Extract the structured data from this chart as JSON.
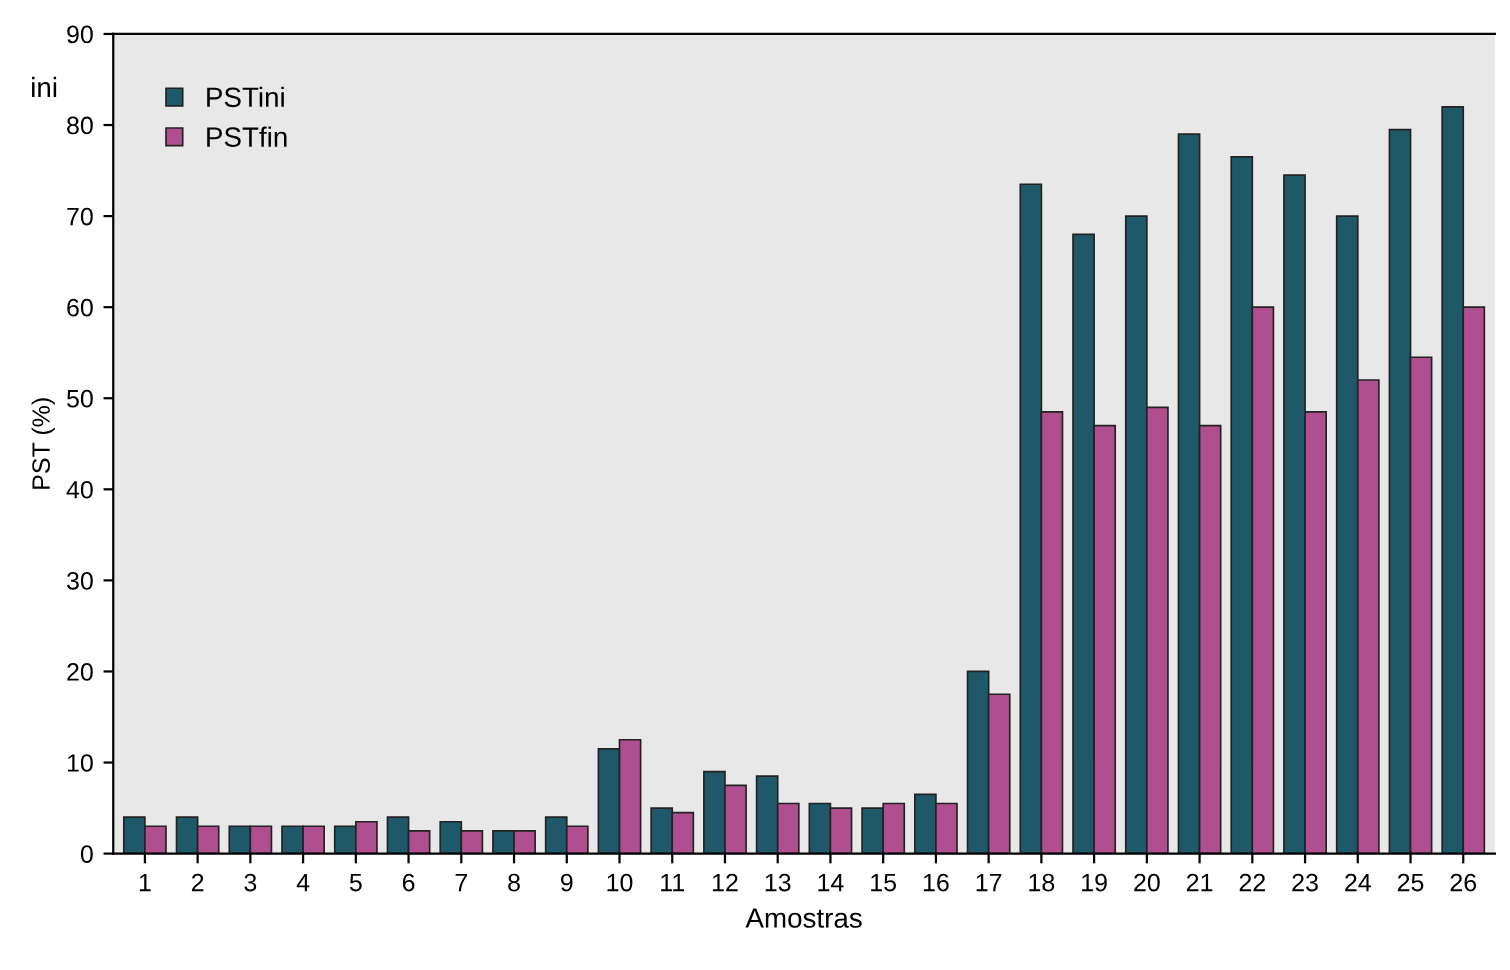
{
  "chart_data": {
    "type": "bar",
    "xlabel": "Amostras",
    "ylabel": "PST (%)",
    "categories": [
      "1",
      "2",
      "3",
      "4",
      "5",
      "6",
      "7",
      "8",
      "9",
      "10",
      "11",
      "12",
      "13",
      "14",
      "15",
      "16",
      "17",
      "18",
      "19",
      "20",
      "21",
      "22",
      "23",
      "24",
      "25",
      "26"
    ],
    "series": [
      {
        "name": "PSTini",
        "color": "#1f5868",
        "values": [
          4,
          4,
          3,
          3,
          3,
          4,
          3.5,
          2.5,
          4,
          11.5,
          5,
          9,
          8.5,
          5.5,
          5,
          6.5,
          20,
          73.5,
          68,
          70,
          79,
          76.5,
          74.5,
          70,
          79.5,
          82
        ]
      },
      {
        "name": "PSTfin",
        "color": "#b04f90",
        "values": [
          3,
          3,
          3,
          3,
          3.5,
          2.5,
          2.5,
          2.5,
          3,
          12.5,
          4.5,
          7.5,
          5.5,
          5,
          5.5,
          5.5,
          17.5,
          48.5,
          47,
          49,
          47,
          60,
          48.5,
          52,
          54.5,
          60
        ]
      }
    ],
    "ylim": [
      0,
      90
    ],
    "yticks": [
      0,
      10,
      20,
      30,
      40,
      50,
      60,
      70,
      80,
      90
    ],
    "legend": "top left",
    "grid": false,
    "annotations": [
      "ini"
    ]
  }
}
